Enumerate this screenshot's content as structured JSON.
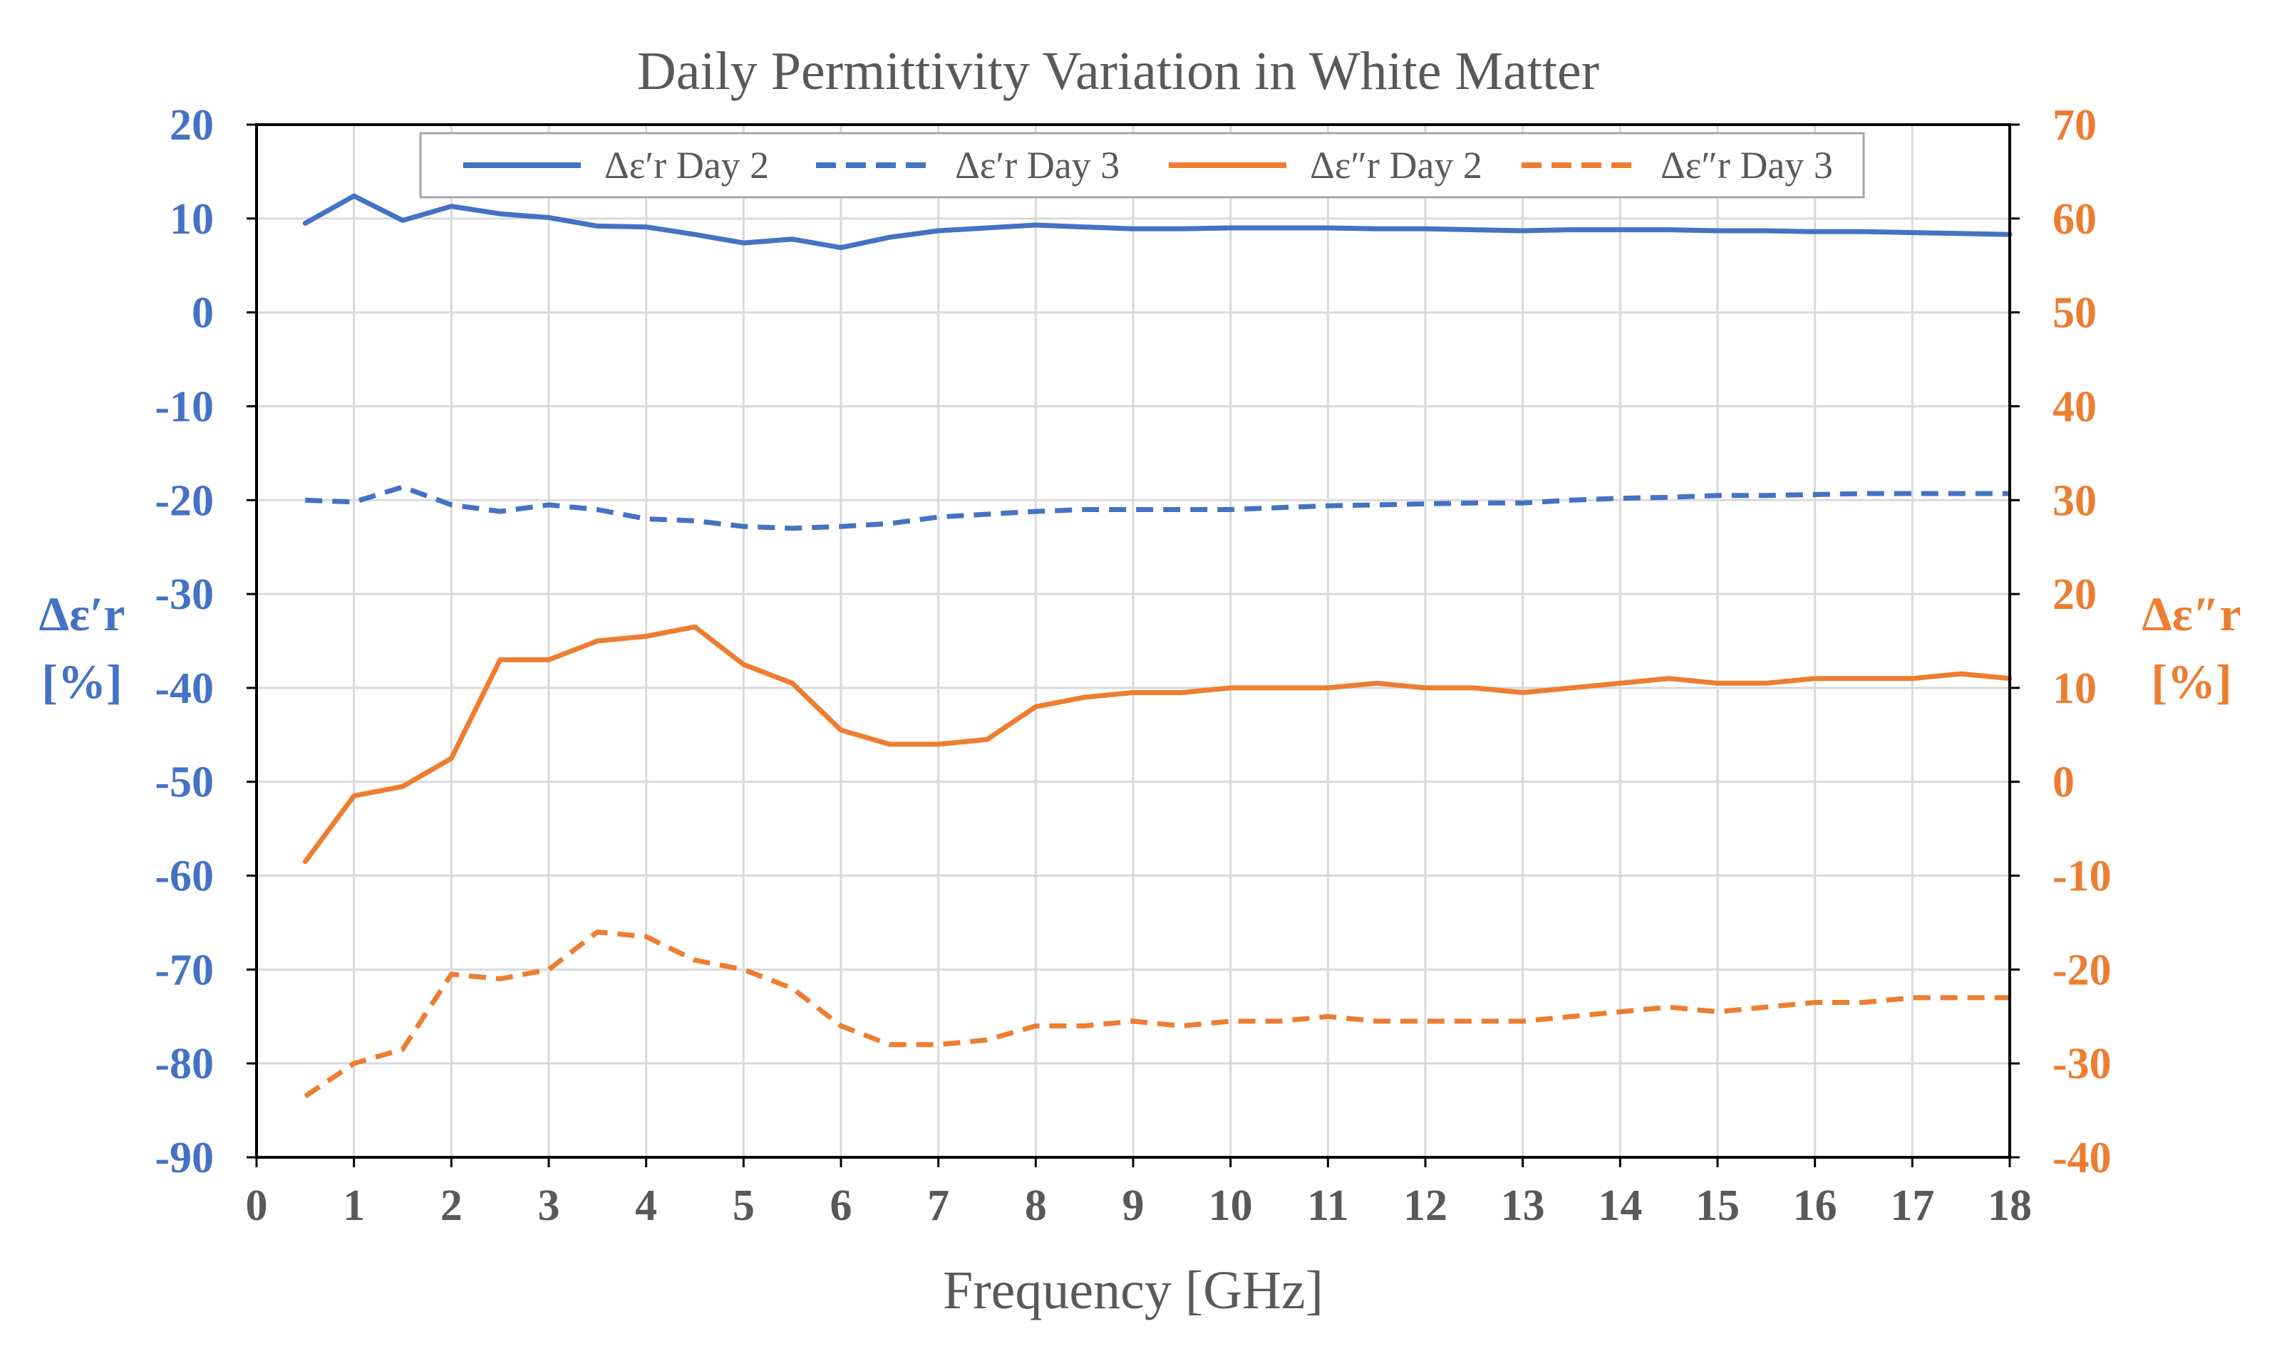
{
  "chart_data": {
    "type": "line",
    "title": "Daily Permittivity Variation in White Matter",
    "xlabel": "Frequency [GHz]",
    "xlim": [
      0,
      18
    ],
    "x_ticks": [
      "0",
      "1",
      "2",
      "3",
      "4",
      "5",
      "6",
      "7",
      "8",
      "9",
      "10",
      "11",
      "12",
      "13",
      "14",
      "15",
      "16",
      "17",
      "18"
    ],
    "y_left": {
      "label_line1": "Δε′r",
      "label_line2": "[%]",
      "lim": [
        -90,
        20
      ],
      "ticks": [
        "20",
        "10",
        "0",
        "-10",
        "-20",
        "-30",
        "-40",
        "-50",
        "-60",
        "-70",
        "-80",
        "-90"
      ]
    },
    "y_right": {
      "label_line1": "Δε″r",
      "label_line2": "[%]",
      "lim": [
        -40,
        70
      ],
      "ticks": [
        "70",
        "60",
        "50",
        "40",
        "30",
        "20",
        "10",
        "0",
        "-10",
        "-20",
        "-30",
        "-40"
      ]
    },
    "colors": {
      "blue": "#4472C4",
      "orange": "#ED7D31",
      "grid": "#D9D9D9"
    },
    "x": [
      0.5,
      1,
      1.5,
      2,
      2.5,
      3,
      3.5,
      4,
      4.5,
      5,
      5.5,
      6,
      6.5,
      7,
      7.5,
      8,
      8.5,
      9,
      9.5,
      10,
      10.5,
      11,
      11.5,
      12,
      12.5,
      13,
      13.5,
      14,
      14.5,
      15,
      15.5,
      16,
      16.5,
      17,
      17.5,
      18
    ],
    "series": [
      {
        "name": "Δε′r Day 2",
        "legend_label": "Δε′r Day 2",
        "axis": "left",
        "style": "solid",
        "values": [
          9.5,
          12.4,
          9.8,
          11.3,
          10.5,
          10.1,
          9.2,
          9.1,
          8.3,
          7.4,
          7.8,
          6.9,
          8.0,
          8.7,
          9.0,
          9.3,
          9.1,
          8.9,
          8.9,
          9.0,
          9.0,
          9.0,
          8.9,
          8.9,
          8.8,
          8.7,
          8.8,
          8.8,
          8.8,
          8.7,
          8.7,
          8.6,
          8.6,
          8.5,
          8.4,
          8.3
        ]
      },
      {
        "name": "Δε′r Day 3",
        "legend_label": "Δε′r Day 3",
        "axis": "left",
        "style": "dashed",
        "values": [
          -20.0,
          -20.2,
          -18.6,
          -20.5,
          -21.2,
          -20.5,
          -21.0,
          -22.0,
          -22.2,
          -22.8,
          -23.0,
          -22.8,
          -22.5,
          -21.8,
          -21.5,
          -21.2,
          -21.0,
          -21.0,
          -21.0,
          -21.0,
          -20.8,
          -20.6,
          -20.5,
          -20.4,
          -20.3,
          -20.3,
          -20.0,
          -19.8,
          -19.7,
          -19.5,
          -19.5,
          -19.4,
          -19.3,
          -19.3,
          -19.3,
          -19.3
        ]
      },
      {
        "name": "Δε″r Day 2",
        "legend_label": "Δε″r Day 2",
        "axis": "right",
        "style": "solid",
        "values": [
          -8.5,
          -1.5,
          -0.5,
          2.5,
          13.0,
          13.0,
          15.0,
          15.5,
          16.5,
          12.5,
          10.5,
          5.5,
          4.0,
          4.0,
          4.5,
          8.0,
          9.0,
          9.5,
          9.5,
          10.0,
          10.0,
          10.0,
          10.5,
          10.0,
          10.0,
          9.5,
          10.0,
          10.5,
          11.0,
          10.5,
          10.5,
          11.0,
          11.0,
          11.0,
          11.5,
          11.0
        ]
      },
      {
        "name": "Δε″r Day 3",
        "legend_label": "Δε″r Day 3",
        "axis": "right",
        "style": "dashed",
        "values": [
          -33.5,
          -30.0,
          -28.5,
          -20.5,
          -21.0,
          -20.0,
          -16.0,
          -16.5,
          -19.0,
          -20.0,
          -22.0,
          -26.0,
          -28.0,
          -28.0,
          -27.5,
          -26.0,
          -26.0,
          -25.5,
          -26.0,
          -25.5,
          -25.5,
          -25.0,
          -25.5,
          -25.5,
          -25.5,
          -25.5,
          -25.0,
          -24.5,
          -24.0,
          -24.5,
          -24.0,
          -23.5,
          -23.5,
          -23.0,
          -23.0,
          -23.0
        ]
      }
    ],
    "legend_position": "top"
  }
}
